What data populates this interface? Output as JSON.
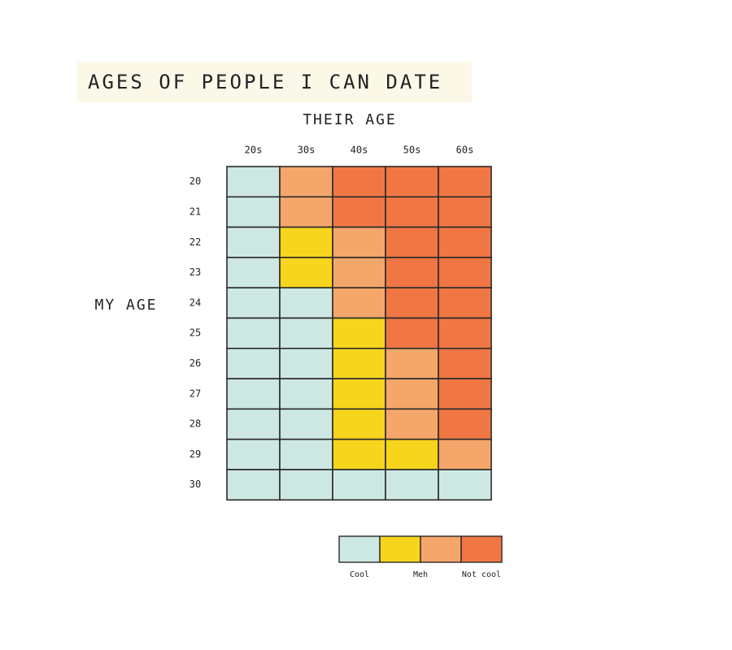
{
  "chart_data": {
    "type": "heatmap",
    "title": "AGES OF PEOPLE I CAN DATE",
    "x_label": "THEIR AGE",
    "y_label": "MY AGE",
    "x_categories": [
      "20s",
      "30s",
      "40s",
      "50s",
      "60s"
    ],
    "y_categories": [
      "20",
      "21",
      "22",
      "23",
      "24",
      "25",
      "26",
      "27",
      "28",
      "29",
      "30"
    ],
    "colors": [
      "#cde8e2",
      "#f7d51d",
      "#f5a66a",
      "#f07744"
    ],
    "values": [
      [
        0,
        2,
        3,
        3,
        3
      ],
      [
        0,
        2,
        3,
        3,
        3
      ],
      [
        0,
        1,
        2,
        3,
        3
      ],
      [
        0,
        1,
        2,
        3,
        3
      ],
      [
        0,
        0,
        2,
        3,
        3
      ],
      [
        0,
        0,
        1,
        3,
        3
      ],
      [
        0,
        0,
        1,
        2,
        3
      ],
      [
        0,
        0,
        1,
        2,
        3
      ],
      [
        0,
        0,
        1,
        2,
        3
      ],
      [
        0,
        0,
        1,
        1,
        2
      ],
      [
        0,
        0,
        0,
        0,
        0
      ]
    ],
    "legend_ticks": [
      {
        "value": 0,
        "label": "Cool"
      },
      {
        "value": 1.5,
        "label": "Meh"
      },
      {
        "value": 3,
        "label": "Not cool"
      }
    ]
  }
}
